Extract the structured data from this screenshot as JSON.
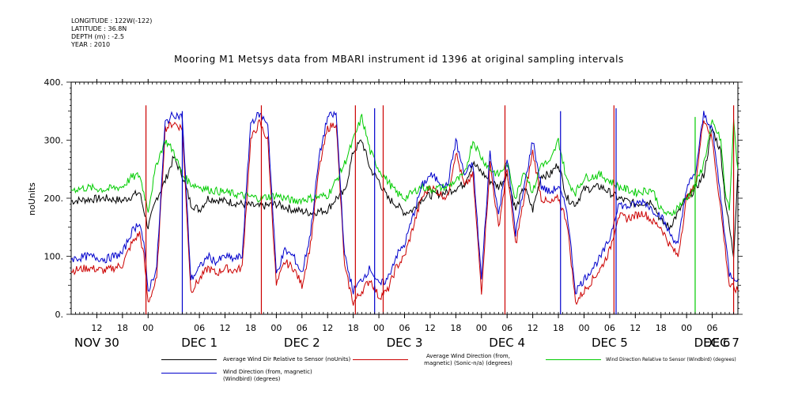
{
  "meta": {
    "longitude": "LONGITUDE : 122W(-122)",
    "latitude": "LATITUDE : 36.8N",
    "depth": "DEPTH (m) : -2.5",
    "year": "YEAR : 2010"
  },
  "chart_data": {
    "type": "line",
    "title": "Mooring M1 Metsys data from MBARI instrument id 1396 at original sampling intervals",
    "ylabel": "noUnits",
    "xlabel": "",
    "ylim": [
      0,
      400
    ],
    "yticks": [
      0,
      100,
      200,
      300,
      400
    ],
    "ytick_labels": [
      "0.",
      "100.",
      "200.",
      "300.",
      "400."
    ],
    "xlim": [
      0,
      156
    ],
    "hour_ticks": [
      {
        "x": 6,
        "label": "12"
      },
      {
        "x": 12,
        "label": "18"
      },
      {
        "x": 18,
        "label": "00"
      },
      {
        "x": 30,
        "label": "06"
      },
      {
        "x": 36,
        "label": "12"
      },
      {
        "x": 42,
        "label": "18"
      },
      {
        "x": 48,
        "label": "00"
      },
      {
        "x": 54,
        "label": "06"
      },
      {
        "x": 60,
        "label": "12"
      },
      {
        "x": 66,
        "label": "18"
      },
      {
        "x": 72,
        "label": "00"
      },
      {
        "x": 78,
        "label": "06"
      },
      {
        "x": 84,
        "label": "12"
      },
      {
        "x": 90,
        "label": "18"
      },
      {
        "x": 96,
        "label": "00"
      },
      {
        "x": 102,
        "label": "06"
      },
      {
        "x": 108,
        "label": "12"
      },
      {
        "x": 114,
        "label": "18"
      },
      {
        "x": 120,
        "label": "00"
      },
      {
        "x": 126,
        "label": "06"
      },
      {
        "x": 132,
        "label": "12"
      },
      {
        "x": 138,
        "label": "18"
      },
      {
        "x": 144,
        "label": "00"
      },
      {
        "x": 150,
        "label": "06"
      }
    ],
    "day_labels": [
      {
        "x": 6,
        "label": "NOV 30"
      },
      {
        "x": 30,
        "label": "DEC  1"
      },
      {
        "x": 54,
        "label": "DEC  2"
      },
      {
        "x": 78,
        "label": "DEC  3"
      },
      {
        "x": 102,
        "label": "DEC  4"
      },
      {
        "x": 126,
        "label": "DEC  5"
      },
      {
        "x": 150,
        "label": "DEC  6"
      },
      {
        "x": 168,
        "label": "DEC  7"
      }
    ],
    "series": [
      {
        "name": "Average Wind Dir Relative to Sensor (noUnits)",
        "color": "#000000",
        "x": [
          0,
          4,
          8,
          12,
          16,
          18,
          20,
          22,
          24,
          26,
          28,
          30,
          32,
          36,
          40,
          44,
          48,
          52,
          56,
          60,
          62,
          64,
          66,
          68,
          70,
          72,
          74,
          76,
          78,
          80,
          82,
          84,
          88,
          92,
          94,
          96,
          98,
          100,
          102,
          104,
          106,
          108,
          110,
          112,
          114,
          116,
          118,
          120,
          124,
          128,
          132,
          136,
          138,
          140,
          144,
          146,
          148,
          150,
          152,
          153,
          154,
          155,
          156
        ],
        "y": [
          195,
          198,
          200,
          196,
          210,
          150,
          200,
          230,
          270,
          240,
          190,
          180,
          200,
          195,
          190,
          185,
          190,
          180,
          175,
          180,
          200,
          210,
          280,
          300,
          250,
          230,
          200,
          190,
          175,
          180,
          200,
          205,
          210,
          225,
          260,
          245,
          230,
          220,
          240,
          180,
          220,
          180,
          240,
          240,
          260,
          200,
          190,
          215,
          220,
          200,
          190,
          195,
          160,
          150,
          200,
          215,
          240,
          320,
          280,
          200,
          150,
          100,
          250
        ]
      },
      {
        "name": "Average Wind Direction (from, magnetic) (Sonic-n/a) (degrees)",
        "color": "#cc0000",
        "x": [
          0,
          4,
          8,
          12,
          14,
          16,
          17,
          18,
          20,
          22,
          24,
          26,
          28,
          30,
          32,
          34,
          36,
          38,
          40,
          42,
          44,
          46,
          48,
          50,
          52,
          54,
          56,
          58,
          60,
          62,
          64,
          66,
          68,
          70,
          72,
          74,
          76,
          78,
          80,
          82,
          84,
          86,
          88,
          90,
          92,
          94,
          96,
          98,
          100,
          102,
          104,
          106,
          108,
          110,
          112,
          114,
          116,
          118,
          120,
          122,
          124,
          126,
          128,
          130,
          132,
          134,
          136,
          138,
          140,
          142,
          144,
          146,
          148,
          150,
          152,
          154,
          156
        ],
        "y": [
          75,
          80,
          75,
          85,
          120,
          140,
          100,
          20,
          60,
          320,
          330,
          320,
          40,
          60,
          80,
          70,
          80,
          75,
          80,
          300,
          330,
          300,
          50,
          90,
          80,
          50,
          120,
          250,
          320,
          330,
          80,
          20,
          40,
          60,
          30,
          40,
          80,
          100,
          150,
          200,
          220,
          210,
          200,
          280,
          220,
          240,
          40,
          260,
          150,
          250,
          120,
          200,
          280,
          200,
          190,
          200,
          160,
          20,
          40,
          60,
          80,
          110,
          170,
          165,
          170,
          175,
          160,
          150,
          120,
          100,
          200,
          220,
          340,
          300,
          180,
          50,
          40
        ]
      },
      {
        "name": "Wind Direction Relative to Sensor (Windbird) (degrees)",
        "color": "#00cc00",
        "x": [
          0,
          4,
          8,
          12,
          14,
          16,
          18,
          20,
          22,
          24,
          26,
          28,
          30,
          32,
          36,
          40,
          44,
          48,
          52,
          56,
          60,
          62,
          64,
          66,
          68,
          70,
          72,
          74,
          76,
          78,
          80,
          82,
          84,
          88,
          92,
          94,
          96,
          98,
          100,
          102,
          104,
          106,
          108,
          110,
          112,
          114,
          116,
          118,
          120,
          124,
          128,
          132,
          136,
          138,
          140,
          144,
          146,
          148,
          150,
          152,
          153,
          154,
          155,
          156
        ],
        "y": [
          215,
          218,
          215,
          220,
          235,
          240,
          180,
          260,
          300,
          280,
          240,
          225,
          220,
          215,
          210,
          205,
          200,
          205,
          195,
          200,
          205,
          230,
          260,
          300,
          340,
          280,
          250,
          230,
          210,
          200,
          210,
          220,
          215,
          220,
          240,
          300,
          270,
          250,
          240,
          260,
          200,
          250,
          210,
          260,
          260,
          300,
          230,
          210,
          235,
          240,
          220,
          210,
          215,
          180,
          170,
          200,
          220,
          260,
          330,
          300,
          210,
          180,
          330,
          250
        ]
      },
      {
        "name": "Wind Direction (from, magnetic) (Windbird) (degrees)",
        "color": "#0000cc",
        "x": [
          0,
          4,
          8,
          12,
          14,
          16,
          17,
          18,
          20,
          22,
          24,
          26,
          28,
          30,
          32,
          34,
          36,
          38,
          40,
          42,
          44,
          46,
          48,
          50,
          52,
          54,
          56,
          58,
          60,
          62,
          64,
          66,
          68,
          70,
          72,
          74,
          76,
          78,
          80,
          82,
          84,
          86,
          88,
          90,
          92,
          94,
          96,
          98,
          100,
          102,
          104,
          106,
          108,
          110,
          112,
          114,
          116,
          118,
          120,
          122,
          124,
          126,
          128,
          130,
          132,
          134,
          136,
          138,
          140,
          142,
          144,
          146,
          148,
          150,
          152,
          154,
          156
        ],
        "y": [
          95,
          100,
          95,
          105,
          140,
          160,
          120,
          40,
          80,
          330,
          345,
          340,
          60,
          80,
          100,
          90,
          100,
          95,
          100,
          330,
          345,
          330,
          70,
          110,
          100,
          70,
          140,
          270,
          340,
          345,
          100,
          40,
          60,
          80,
          50,
          60,
          100,
          120,
          170,
          220,
          240,
          230,
          220,
          300,
          240,
          260,
          60,
          280,
          170,
          270,
          140,
          220,
          300,
          220,
          210,
          220,
          180,
          40,
          60,
          80,
          100,
          130,
          190,
          185,
          190,
          195,
          180,
          170,
          140,
          120,
          220,
          240,
          345,
          320,
          200,
          70,
          60
        ]
      }
    ],
    "spikes": [
      {
        "series": 1,
        "x": 17.5,
        "y_from": 0,
        "y_to": 360
      },
      {
        "series": 1,
        "x": 44.5,
        "y_from": 0,
        "y_to": 360
      },
      {
        "series": 1,
        "x": 66.5,
        "y_from": 0,
        "y_to": 360
      },
      {
        "series": 1,
        "x": 73,
        "y_from": 0,
        "y_to": 360
      },
      {
        "series": 1,
        "x": 101.5,
        "y_from": 0,
        "y_to": 360
      },
      {
        "series": 1,
        "x": 127,
        "y_from": 0,
        "y_to": 360
      },
      {
        "series": 1,
        "x": 155,
        "y_from": 0,
        "y_to": 360
      },
      {
        "series": 3,
        "x": 26,
        "y_from": 0,
        "y_to": 350
      },
      {
        "series": 3,
        "x": 71,
        "y_from": 0,
        "y_to": 355
      },
      {
        "series": 3,
        "x": 114.5,
        "y_from": 0,
        "y_to": 350
      },
      {
        "series": 3,
        "x": 127.5,
        "y_from": 0,
        "y_to": 355
      },
      {
        "series": 2,
        "x": 146,
        "y_from": 0,
        "y_to": 340
      }
    ],
    "legend_placement": "bottom"
  }
}
